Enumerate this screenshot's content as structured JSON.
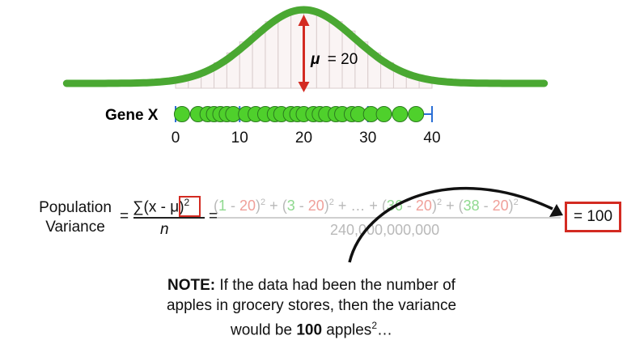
{
  "distribution": {
    "mean_label": "μ",
    "mean_value": "= 20",
    "mean": 20
  },
  "number_line": {
    "label": "Gene X",
    "range": [
      0,
      40
    ],
    "ticks": [
      "0",
      "10",
      "20",
      "30",
      "40"
    ],
    "points": [
      1,
      3.5,
      5,
      6,
      7,
      8,
      9,
      11,
      12.5,
      14,
      15.5,
      16.5,
      18,
      19,
      20,
      21.5,
      22.5,
      23.5,
      25,
      26,
      27.5,
      28.5,
      30.5,
      32.5,
      35,
      37.5
    ]
  },
  "formula": {
    "label_line1": "Population",
    "label_line2": "Variance",
    "equals1": "=",
    "numerator": "∑(x - μ)",
    "exponent": "2",
    "denominator": "n",
    "equals2": "=",
    "expr_p1_open": "(",
    "expr_p1_x": "1",
    "expr_p1_minus": " - ",
    "expr_p1_mu": "20",
    "expr_p1_close": ")",
    "expr_sq": "2",
    "expr_plus": " + ",
    "expr_p2_x": "3",
    "expr_ellipsis": " + … + ",
    "expr_p3_x": "36",
    "expr_p4_x": "38",
    "expr_denominator": "240,000,000,000",
    "result": "= 100"
  },
  "note": {
    "bold": "NOTE:",
    "line1": " If the data had been the number of",
    "line2": "apples in grocery stores, then the variance",
    "line3_pre": "would be ",
    "line3_bold": "100",
    "line3_post": " apples",
    "line3_sup": "2",
    "line3_end": "…"
  },
  "colors": {
    "curve": "#4aa832",
    "points": "#4fd02c",
    "arrow": "#d32b22",
    "axis": "#2a6fd6"
  }
}
